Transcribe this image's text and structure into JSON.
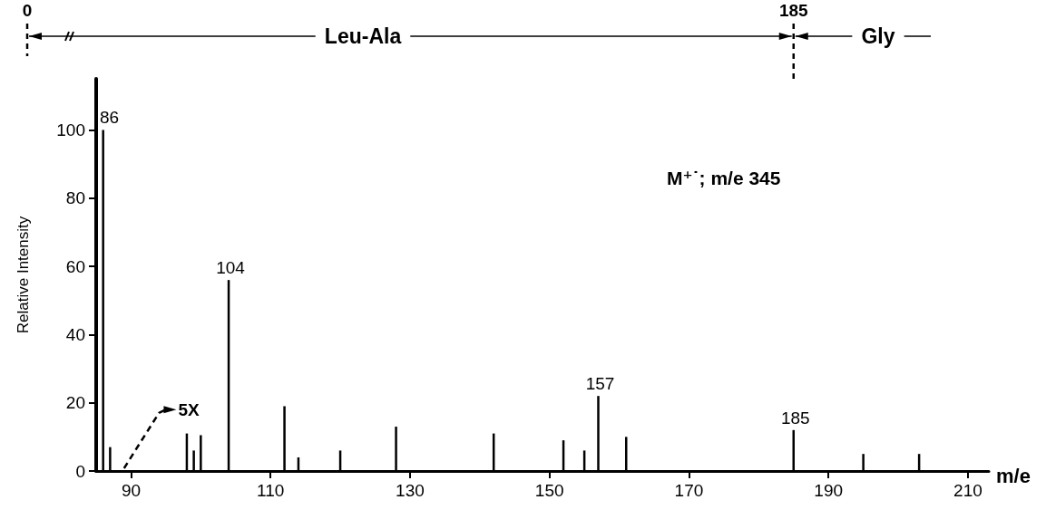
{
  "chart_data": {
    "type": "bar",
    "xlabel": "m/e",
    "ylabel": "Relative Intensity",
    "x": [
      86,
      87,
      98,
      99,
      100,
      104,
      112,
      114,
      120,
      128,
      142,
      152,
      155,
      157,
      161,
      185,
      195,
      203
    ],
    "values": [
      100,
      7,
      11,
      6,
      10.5,
      56,
      19,
      4,
      6,
      13,
      11,
      9,
      6,
      22,
      10,
      12,
      5,
      5
    ],
    "color": "#000000",
    "xlim": [
      85,
      213
    ],
    "xticks": [
      90,
      110,
      130,
      150,
      170,
      190,
      210
    ],
    "ylim": [
      0,
      115
    ],
    "yticks": [
      0,
      20,
      40,
      60,
      80,
      100
    ],
    "annotations": [
      "0",
      "185",
      "Leu-Ala",
      "Gly",
      "5X",
      "M⁺˙; m/e 345",
      {
        "text": "86",
        "x": 86,
        "y": 100
      },
      {
        "text": "104",
        "x": 104,
        "y": 56
      },
      {
        "text": "157",
        "x": 157,
        "y": 22
      },
      {
        "text": "185",
        "x": 185,
        "y": 12
      }
    ]
  }
}
